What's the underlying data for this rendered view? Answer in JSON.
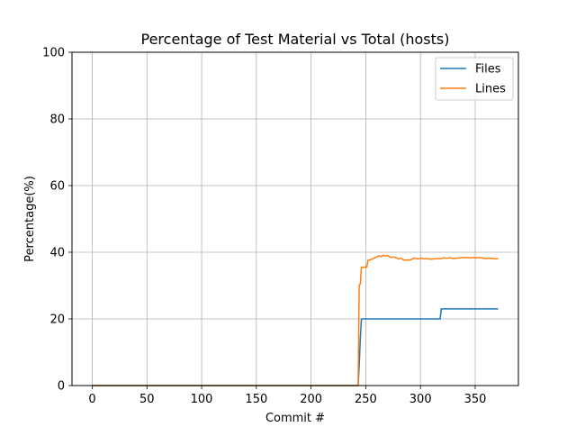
{
  "chart_data": {
    "type": "line",
    "title": "Percentage of Test Material vs Total (hosts)",
    "xlabel": "Commit #",
    "ylabel": "Percentage(%)",
    "xlim": [
      -18.5,
      389.5
    ],
    "ylim": [
      0,
      100
    ],
    "xticks": [
      0,
      50,
      100,
      150,
      200,
      250,
      300,
      350
    ],
    "yticks": [
      0,
      20,
      40,
      60,
      80,
      100
    ],
    "grid": true,
    "legend_position": "top-right",
    "series": [
      {
        "name": "Files",
        "color": "#1f77b4",
        "x": [
          0,
          243,
          244,
          245,
          246,
          300,
          318,
          319,
          320,
          350,
          371
        ],
        "y": [
          0,
          0,
          6,
          14,
          20,
          20,
          20,
          23,
          23,
          23,
          23
        ]
      },
      {
        "name": "Lines",
        "color": "#ff7f0e",
        "x": [
          0,
          243,
          244,
          245,
          246,
          250,
          251,
          252,
          255,
          258,
          260,
          262,
          264,
          266,
          268,
          270,
          272,
          274,
          276,
          278,
          280,
          282,
          284,
          286,
          288,
          290,
          292,
          294,
          296,
          298,
          300,
          303,
          306,
          309,
          312,
          315,
          318,
          321,
          324,
          327,
          330,
          333,
          336,
          339,
          342,
          345,
          348,
          351,
          354,
          357,
          360,
          363,
          366,
          369,
          371
        ],
        "y": [
          0,
          0,
          30,
          30.5,
          35.5,
          35.5,
          35.5,
          37.6,
          37.8,
          38.3,
          38.6,
          38.9,
          38.7,
          39.1,
          38.9,
          39.0,
          38.6,
          38.4,
          38.6,
          38.3,
          38.0,
          38.2,
          37.8,
          37.6,
          37.7,
          37.6,
          37.9,
          38.2,
          38.1,
          38.0,
          38.2,
          38.0,
          38.1,
          37.9,
          38.0,
          38.1,
          38.0,
          38.3,
          38.2,
          38.3,
          38.1,
          38.2,
          38.3,
          38.4,
          38.4,
          38.3,
          38.4,
          38.3,
          38.4,
          38.2,
          38.1,
          38.2,
          38.1,
          38.0,
          38.1
        ]
      }
    ]
  }
}
